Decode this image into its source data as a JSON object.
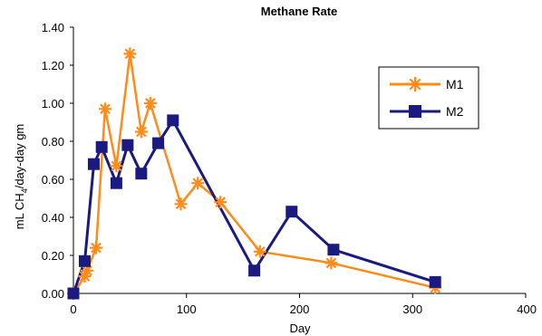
{
  "chart_data": {
    "type": "line",
    "title": "Methane Rate",
    "xlabel": "Day",
    "ylabel_main": "mL CH",
    "ylabel_sub": "4",
    "ylabel_rest": "/day-day gm",
    "xlim": [
      0,
      400
    ],
    "ylim": [
      0,
      1.4
    ],
    "xticks": [
      "0",
      "100",
      "200",
      "300",
      "400"
    ],
    "yticks": [
      "0.00",
      "0.20",
      "0.40",
      "0.60",
      "0.80",
      "1.00",
      "1.20",
      "1.40"
    ],
    "grid": false,
    "legend_position": "top-right",
    "series": [
      {
        "name": "M1",
        "color": "#FF8C1A",
        "marker": "asterisk",
        "points": [
          [
            0,
            0.0
          ],
          [
            10,
            0.09
          ],
          [
            12,
            0.12
          ],
          [
            20,
            0.24
          ],
          [
            28,
            0.97
          ],
          [
            38,
            0.67
          ],
          [
            50,
            1.26
          ],
          [
            60,
            0.85
          ],
          [
            68,
            1.0
          ],
          [
            95,
            0.47
          ],
          [
            110,
            0.58
          ],
          [
            130,
            0.48
          ],
          [
            165,
            0.22
          ],
          [
            228,
            0.16
          ],
          [
            320,
            0.03
          ]
        ]
      },
      {
        "name": "M2",
        "color": "#1A1A80",
        "marker": "square",
        "points": [
          [
            0,
            0.0
          ],
          [
            10,
            0.17
          ],
          [
            18,
            0.68
          ],
          [
            25,
            0.77
          ],
          [
            38,
            0.58
          ],
          [
            48,
            0.78
          ],
          [
            60,
            0.63
          ],
          [
            75,
            0.79
          ],
          [
            88,
            0.91
          ],
          [
            160,
            0.12
          ],
          [
            193,
            0.43
          ],
          [
            230,
            0.23
          ],
          [
            320,
            0.06
          ]
        ]
      }
    ]
  }
}
